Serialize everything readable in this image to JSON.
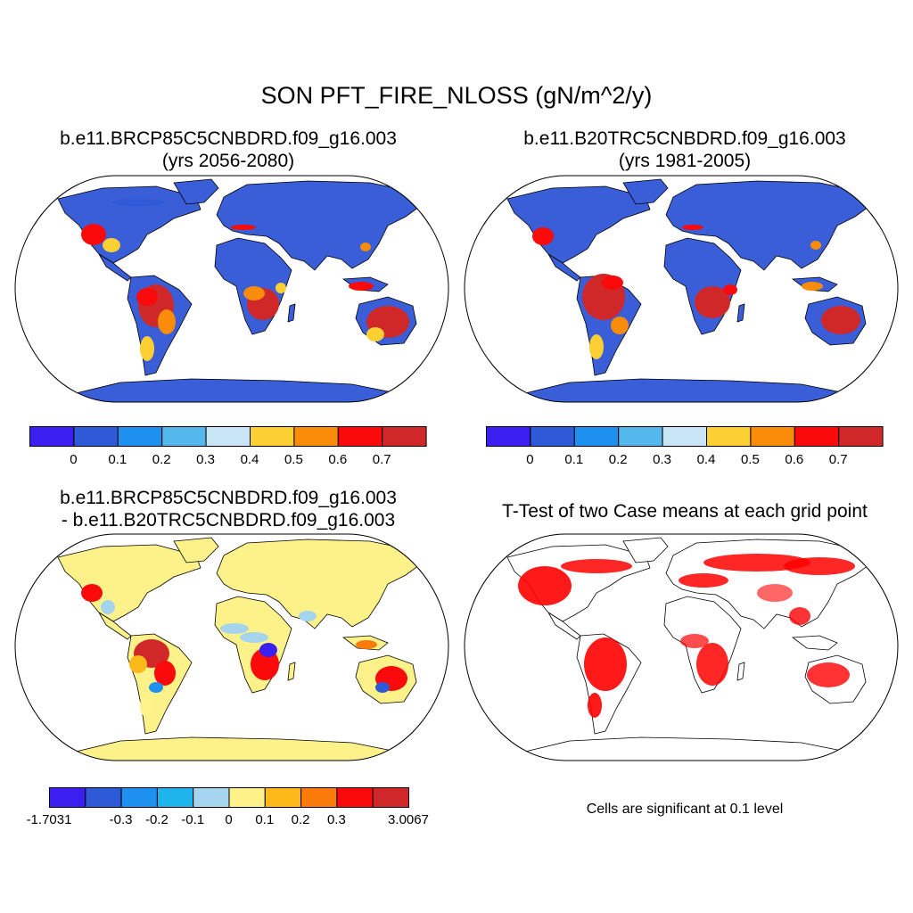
{
  "main_title": "SON PFT_FIRE_NLOSS (gN/m^2/y)",
  "panels": {
    "p1": {
      "title_line1": "b.e11.BRCP85C5CNBDRD.f09_g16.003",
      "title_line2": "(yrs 2056-2080)"
    },
    "p2": {
      "title_line1": "b.e11.B20TRC5CNBDRD.f09_g16.003",
      "title_line2": "(yrs 1981-2005)"
    },
    "p3": {
      "title_line1": "b.e11.BRCP85C5CNBDRD.f09_g16.003",
      "title_line2": "- b.e11.B20TRC5CNBDRD.f09_g16.003"
    },
    "p4": {
      "title_line1": "T-Test of two Case means at each grid point",
      "note": "Cells are significant at 0.1 level"
    }
  },
  "colorbars": {
    "abs": {
      "colors": [
        "#3b1ff0",
        "#2e5ad8",
        "#1e90f0",
        "#55b8ec",
        "#c8e6f6",
        "#fcd032",
        "#fa8c0a",
        "#fa0a0a",
        "#d02828"
      ],
      "labels": [
        "0",
        "0.1",
        "0.2",
        "0.3",
        "0.4",
        "0.5",
        "0.6",
        "0.7"
      ]
    },
    "diff": {
      "colors": [
        "#3b1ff0",
        "#2e5ad8",
        "#1e90f0",
        "#1eb4ec",
        "#a4d4ee",
        "#fff28a",
        "#fcba1a",
        "#fa7a0a",
        "#fa0a0a",
        "#d02828"
      ],
      "labels": [
        "-1.7031",
        "-0.3",
        "-0.2",
        "-0.1",
        "0",
        "0.1",
        "0.2",
        "0.3",
        "3.0067"
      ]
    }
  },
  "map_colors": {
    "abs_land": "#3a5ed8",
    "diff_land": "#fdf28a",
    "ttest_fill": "#ff0000",
    "coast": "#000000"
  }
}
